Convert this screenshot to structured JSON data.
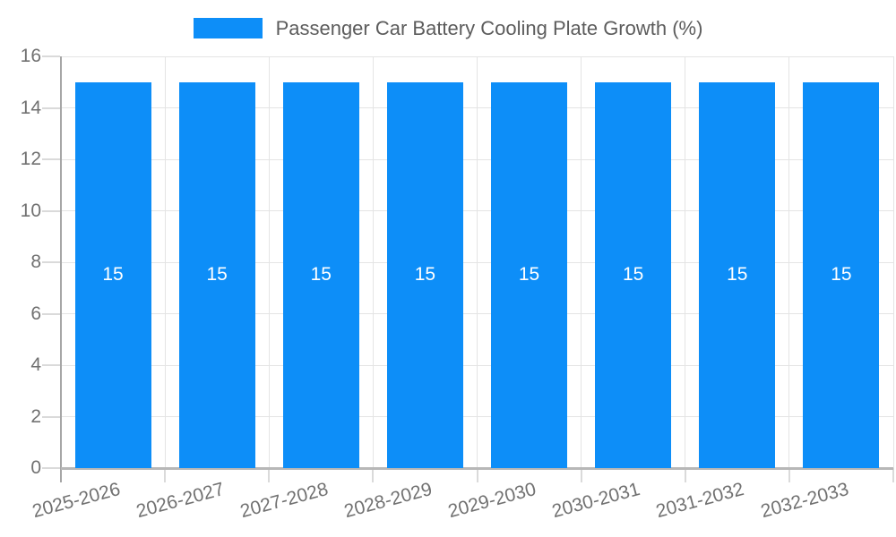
{
  "chart_data": {
    "type": "bar",
    "title": "Passenger Car Battery Cooling Plate Growth (%)",
    "categories": [
      "2025-2026",
      "2026-2027",
      "2027-2028",
      "2028-2029",
      "2029-2030",
      "2030-2031",
      "2031-2032",
      "2032-2033"
    ],
    "series": [
      {
        "name": "Passenger Car Battery Cooling Plate Growth (%)",
        "values": [
          15,
          15,
          15,
          15,
          15,
          15,
          15,
          15
        ],
        "bar_labels": [
          "15",
          "15",
          "15",
          "15",
          "15",
          "15",
          "15",
          "15"
        ]
      }
    ],
    "xlabel": "",
    "ylabel": "",
    "ylim": [
      0,
      16
    ],
    "yticks": [
      0,
      2,
      4,
      6,
      8,
      10,
      12,
      14,
      16
    ],
    "grid": true,
    "legend_position": "top",
    "colors": {
      "bar": "#0d8ef8",
      "bar_label": "#ffffff",
      "gridline": "#e4e4e4",
      "tick_mark": "#dadada",
      "y_axis_line": "#a6a6a6",
      "x_axis_line": "#b7b7b7",
      "axis_text": "#717171",
      "legend_text": "#5c5c5c"
    }
  }
}
